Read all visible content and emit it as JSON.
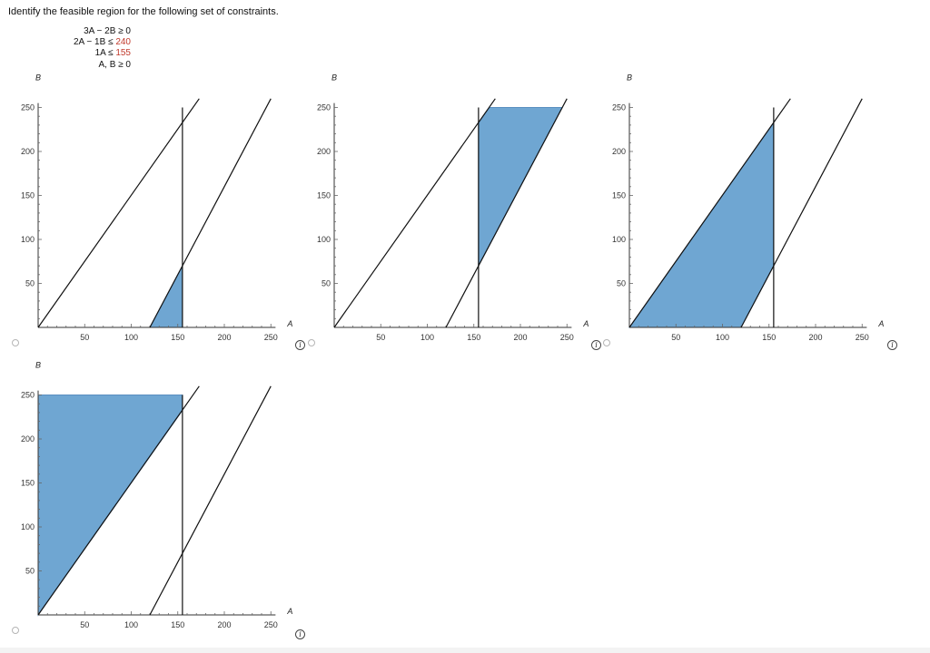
{
  "question": {
    "prompt": "Identify the feasible region for the following set of constraints."
  },
  "constraints": [
    {
      "lhs": "3A − 2B ≥ 0",
      "rhs": ""
    },
    {
      "lhs": "2A − 1B ≤ ",
      "rhs": "240"
    },
    {
      "lhs": "1A ≤ ",
      "rhs": "155"
    },
    {
      "lhs": "A, B ≥ 0",
      "rhs": ""
    }
  ],
  "colors": {
    "region_fill": "#6fa6d2",
    "region_stroke": "#5a8fc0",
    "constraint_red": "#c0392b",
    "line": "#111111"
  },
  "axes": {
    "x_label": "A",
    "y_label": "B",
    "x_ticks": [
      "50",
      "100",
      "150",
      "200",
      "250"
    ],
    "y_ticks": [
      "50",
      "100",
      "150",
      "200",
      "250"
    ]
  },
  "chart_data": [
    {
      "type": "area",
      "option": 1,
      "xlabel": "A",
      "ylabel": "B",
      "xlim": [
        0,
        255
      ],
      "ylim": [
        0,
        255
      ],
      "lines": [
        {
          "equation": "3A - 2B = 0",
          "points": [
            [
              0,
              0
            ],
            [
              173,
              260
            ]
          ]
        },
        {
          "equation": "2A - B = 240",
          "points": [
            [
              120,
              0
            ],
            [
              250,
              260
            ]
          ]
        },
        {
          "equation": "A = 155",
          "points": [
            [
              155,
              0
            ],
            [
              155,
              250
            ]
          ]
        }
      ],
      "region": [
        [
          120,
          0
        ],
        [
          155,
          0
        ],
        [
          155,
          70
        ]
      ]
    },
    {
      "type": "area",
      "option": 2,
      "xlabel": "A",
      "ylabel": "B",
      "xlim": [
        0,
        255
      ],
      "ylim": [
        0,
        255
      ],
      "lines": [
        {
          "equation": "3A - 2B = 0",
          "points": [
            [
              0,
              0
            ],
            [
              173,
              260
            ]
          ]
        },
        {
          "equation": "2A - B = 240",
          "points": [
            [
              120,
              0
            ],
            [
              250,
              260
            ]
          ]
        },
        {
          "equation": "A = 155",
          "points": [
            [
              155,
              0
            ],
            [
              155,
              250
            ]
          ]
        }
      ],
      "region": [
        [
          155,
          70
        ],
        [
          155,
          232.5
        ],
        [
          166.7,
          250
        ],
        [
          245,
          250
        ]
      ]
    },
    {
      "type": "area",
      "option": 3,
      "xlabel": "A",
      "ylabel": "B",
      "xlim": [
        0,
        255
      ],
      "ylim": [
        0,
        255
      ],
      "lines": [
        {
          "equation": "3A - 2B = 0",
          "points": [
            [
              0,
              0
            ],
            [
              173,
              260
            ]
          ]
        },
        {
          "equation": "2A - B = 240",
          "points": [
            [
              120,
              0
            ],
            [
              250,
              260
            ]
          ]
        },
        {
          "equation": "A = 155",
          "points": [
            [
              155,
              0
            ],
            [
              155,
              250
            ]
          ]
        }
      ],
      "region": [
        [
          0,
          0
        ],
        [
          120,
          0
        ],
        [
          155,
          70
        ],
        [
          155,
          232.5
        ]
      ]
    },
    {
      "type": "area",
      "option": 4,
      "xlabel": "A",
      "ylabel": "B",
      "xlim": [
        0,
        255
      ],
      "ylim": [
        0,
        255
      ],
      "lines": [
        {
          "equation": "3A - 2B = 0",
          "points": [
            [
              0,
              0
            ],
            [
              173,
              260
            ]
          ]
        },
        {
          "equation": "2A - B = 240",
          "points": [
            [
              120,
              0
            ],
            [
              250,
              260
            ]
          ]
        },
        {
          "equation": "A = 155",
          "points": [
            [
              155,
              0
            ],
            [
              155,
              250
            ]
          ]
        }
      ],
      "region": [
        [
          0,
          0
        ],
        [
          0,
          250
        ],
        [
          155,
          250
        ],
        [
          155,
          232.5
        ]
      ]
    }
  ]
}
